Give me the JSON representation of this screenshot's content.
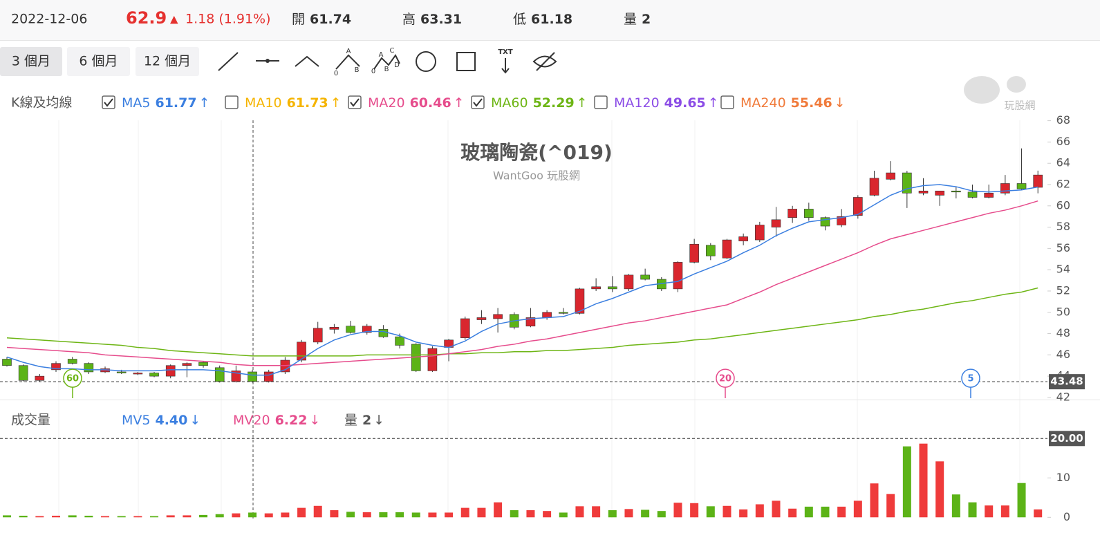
{
  "header": {
    "date": "2022-12-06",
    "price": 62.9,
    "arrow": "▲",
    "change": "1.18 (1.91%)",
    "stats": [
      {
        "label": "開",
        "value": 61.74
      },
      {
        "label": "高",
        "value": 63.31
      },
      {
        "label": "低",
        "value": 61.18
      },
      {
        "label": "量",
        "value": 2
      }
    ]
  },
  "toolbar": {
    "periods": [
      "3 個月",
      "6 個月",
      "12 個月"
    ],
    "active": 0,
    "wave1": [
      "A",
      "0",
      "B"
    ],
    "wave2": [
      "C",
      "A",
      "0",
      "B",
      "D"
    ],
    "text_tool": "TXT"
  },
  "ma_legend": {
    "title": "K線及均線",
    "items": [
      {
        "name": "MA5",
        "value": 61.77,
        "arrow": "↑",
        "checked": true,
        "color": "#3b7fe0"
      },
      {
        "name": "MA10",
        "value": 61.73,
        "arrow": "↑",
        "checked": false,
        "color": "#f5b400"
      },
      {
        "name": "MA20",
        "value": 60.46,
        "arrow": "↑",
        "checked": true,
        "color": "#e64c8c"
      },
      {
        "name": "MA60",
        "value": 52.29,
        "arrow": "↑",
        "checked": true,
        "color": "#6db514"
      },
      {
        "name": "MA120",
        "value": 49.65,
        "arrow": "↑",
        "checked": false,
        "color": "#8b4ce6"
      },
      {
        "name": "MA240",
        "value": 55.46,
        "arrow": "↓",
        "checked": false,
        "color": "#f07a3a"
      }
    ]
  },
  "watermark": "玩股網",
  "chart_data": [
    {
      "type": "candlestick",
      "title": "玻璃陶瓷(^019)",
      "subtitle": "WantGoo 玩股網",
      "up_color": "#d9262e",
      "down_color": "#5cb317",
      "open": [
        45.6,
        45.0,
        43.6,
        44.6,
        45.6,
        45.2,
        44.4,
        44.4,
        44.2,
        44.3,
        44.0,
        45.0,
        45.3,
        44.8,
        43.5,
        44.4,
        43.5,
        44.4,
        45.5,
        47.2,
        48.4,
        48.7,
        48.1,
        48.4,
        47.7,
        47.0,
        44.5,
        46.7,
        47.6,
        49.3,
        49.4,
        49.8,
        48.7,
        49.5,
        50.0,
        49.9,
        52.2,
        52.4,
        52.2,
        53.5,
        53.1,
        52.2,
        54.7,
        56.3,
        55.1,
        56.7,
        56.8,
        58.0,
        58.9,
        59.7,
        58.9,
        58.2,
        59.1,
        61.0,
        62.5,
        63.1,
        61.2,
        61.0,
        61.4,
        61.3,
        60.8,
        61.2,
        62.1,
        61.74
      ],
      "high": [
        45.8,
        45.1,
        44.2,
        45.4,
        45.8,
        45.3,
        44.9,
        44.6,
        44.4,
        44.4,
        45.1,
        45.3,
        45.4,
        45.0,
        45.0,
        44.6,
        44.6,
        45.8,
        47.4,
        49.1,
        48.9,
        49.2,
        48.9,
        48.8,
        48.0,
        47.1,
        46.8,
        47.5,
        49.6,
        50.2,
        50.4,
        50.0,
        50.4,
        50.2,
        50.4,
        52.3,
        53.2,
        53.4,
        53.6,
        54.1,
        53.3,
        54.8,
        56.9,
        56.5,
        56.9,
        57.4,
        58.5,
        59.9,
        60.0,
        60.3,
        59.0,
        59.7,
        61.0,
        63.3,
        64.2,
        63.3,
        62.6,
        61.4,
        61.8,
        62.0,
        62.0,
        62.9,
        65.4,
        63.31
      ],
      "low": [
        44.9,
        43.5,
        43.5,
        44.4,
        45.1,
        44.2,
        44.3,
        44.2,
        44.1,
        43.9,
        43.8,
        43.9,
        44.8,
        43.4,
        43.4,
        43.4,
        43.4,
        44.2,
        45.3,
        47.0,
        48.0,
        48.0,
        47.9,
        47.6,
        46.6,
        44.4,
        44.4,
        45.4,
        47.4,
        48.9,
        48.1,
        48.4,
        48.6,
        49.3,
        49.8,
        49.8,
        52.0,
        51.9,
        52.0,
        53.0,
        52.0,
        51.9,
        54.6,
        54.9,
        55.0,
        56.3,
        56.6,
        57.1,
        58.4,
        58.6,
        57.7,
        58.0,
        58.8,
        60.9,
        62.4,
        59.8,
        61.0,
        60.0,
        60.7,
        60.7,
        60.7,
        61.0,
        61.5,
        61.18
      ],
      "close": [
        45.0,
        43.6,
        44.0,
        45.2,
        45.2,
        44.4,
        44.7,
        44.3,
        44.3,
        44.0,
        45.0,
        45.2,
        45.0,
        43.5,
        44.5,
        43.5,
        44.4,
        45.5,
        47.2,
        48.5,
        48.6,
        48.1,
        48.7,
        47.7,
        46.9,
        44.5,
        46.6,
        47.4,
        49.4,
        49.5,
        49.8,
        48.6,
        49.5,
        50.0,
        49.9,
        52.2,
        52.4,
        52.2,
        53.5,
        53.1,
        52.2,
        54.7,
        56.4,
        55.3,
        56.8,
        57.1,
        58.2,
        58.7,
        59.7,
        58.9,
        58.1,
        59.0,
        60.8,
        62.6,
        63.1,
        61.2,
        61.4,
        61.4,
        61.3,
        60.8,
        61.2,
        62.1,
        61.6,
        62.9
      ],
      "series": [
        {
          "name": "MA60",
          "color": "#6db514",
          "values": [
            47.6,
            47.5,
            47.4,
            47.3,
            47.2,
            47.1,
            47.0,
            46.9,
            46.7,
            46.6,
            46.4,
            46.3,
            46.2,
            46.1,
            46.0,
            45.9,
            45.9,
            45.9,
            45.9,
            45.9,
            45.9,
            45.9,
            46.0,
            46.0,
            46.0,
            46.0,
            46.0,
            46.1,
            46.1,
            46.2,
            46.2,
            46.3,
            46.3,
            46.4,
            46.4,
            46.5,
            46.6,
            46.7,
            46.9,
            47.0,
            47.1,
            47.2,
            47.4,
            47.5,
            47.7,
            47.9,
            48.1,
            48.3,
            48.5,
            48.7,
            48.9,
            49.1,
            49.3,
            49.6,
            49.8,
            50.1,
            50.3,
            50.6,
            50.9,
            51.1,
            51.4,
            51.7,
            51.9,
            52.29
          ]
        },
        {
          "name": "MA20",
          "color": "#e64c8c",
          "values": [
            46.7,
            46.6,
            46.5,
            46.4,
            46.3,
            46.2,
            46.0,
            45.9,
            45.8,
            45.7,
            45.6,
            45.5,
            45.4,
            45.3,
            45.1,
            45.0,
            45.0,
            45.0,
            45.1,
            45.2,
            45.3,
            45.4,
            45.5,
            45.6,
            45.7,
            45.8,
            45.9,
            46.1,
            46.3,
            46.5,
            46.8,
            47.0,
            47.3,
            47.5,
            47.8,
            48.1,
            48.4,
            48.7,
            49.0,
            49.2,
            49.5,
            49.8,
            50.1,
            50.4,
            50.7,
            51.3,
            51.9,
            52.6,
            53.2,
            53.8,
            54.4,
            55.0,
            55.6,
            56.3,
            56.9,
            57.3,
            57.7,
            58.1,
            58.5,
            58.9,
            59.3,
            59.6,
            60.0,
            60.46
          ]
        },
        {
          "name": "MA5",
          "color": "#3b7fe0",
          "values": [
            45.8,
            45.3,
            44.9,
            44.7,
            44.7,
            44.6,
            44.6,
            44.5,
            44.5,
            44.5,
            44.6,
            44.6,
            44.6,
            44.5,
            44.3,
            44.1,
            44.1,
            44.6,
            45.6,
            46.6,
            47.4,
            47.9,
            48.2,
            48.2,
            47.8,
            47.2,
            46.9,
            46.7,
            47.3,
            48.2,
            48.9,
            49.2,
            49.4,
            49.5,
            49.6,
            50.1,
            50.8,
            51.3,
            51.9,
            52.5,
            52.7,
            52.9,
            53.6,
            54.2,
            54.8,
            55.6,
            56.3,
            57.2,
            57.9,
            58.5,
            58.7,
            58.9,
            59.2,
            60.1,
            61.0,
            61.6,
            61.9,
            62.0,
            61.8,
            61.4,
            61.3,
            61.4,
            61.5,
            61.77
          ]
        }
      ],
      "ylim": [
        41.8,
        68.3
      ],
      "yticks": [
        42,
        44,
        46,
        48,
        50,
        52,
        54,
        56,
        58,
        60,
        62,
        64,
        66,
        68
      ],
      "reference_line": 43.48,
      "markers": [
        {
          "label": "60",
          "color": "#6db514"
        },
        {
          "label": "20",
          "color": "#e64c8c"
        },
        {
          "label": "5",
          "color": "#3b7fe0"
        }
      ]
    },
    {
      "type": "bar",
      "title": "成交量",
      "up_color": "#ef3b3b",
      "down_color": "#5cb317",
      "legend": [
        {
          "name": "MV5",
          "value": 4.4,
          "value_label": "4.40",
          "arrow": "↓",
          "color": "#3b7fe0"
        },
        {
          "name": "MV20",
          "value": 6.22,
          "value_label": "6.22",
          "arrow": "↓",
          "color": "#e64c8c"
        },
        {
          "name": "量",
          "value": 2,
          "arrow": "↓",
          "color": "#555555"
        }
      ],
      "values": [
        0.5,
        0.4,
        0.3,
        0.4,
        0.5,
        0.4,
        0.3,
        0.3,
        0.3,
        0.3,
        0.5,
        0.5,
        0.6,
        0.8,
        1.0,
        1.2,
        1.0,
        1.2,
        2.4,
        2.9,
        1.8,
        1.4,
        1.3,
        1.3,
        1.3,
        1.2,
        1.2,
        1.2,
        2.4,
        2.4,
        3.8,
        1.8,
        1.8,
        1.6,
        1.2,
        2.8,
        2.8,
        1.8,
        2.1,
        1.9,
        1.6,
        3.7,
        3.6,
        2.8,
        2.9,
        2.0,
        3.3,
        4.2,
        2.2,
        2.7,
        2.7,
        2.7,
        4.2,
        8.6,
        5.9,
        18.0,
        18.7,
        14.2,
        5.8,
        3.8,
        3.0,
        3.0,
        8.7,
        2
      ],
      "ylim": [
        -0.3,
        20.4
      ],
      "yticks": [
        0,
        10,
        {
          "value": 20,
          "label": "20.00"
        }
      ]
    }
  ]
}
